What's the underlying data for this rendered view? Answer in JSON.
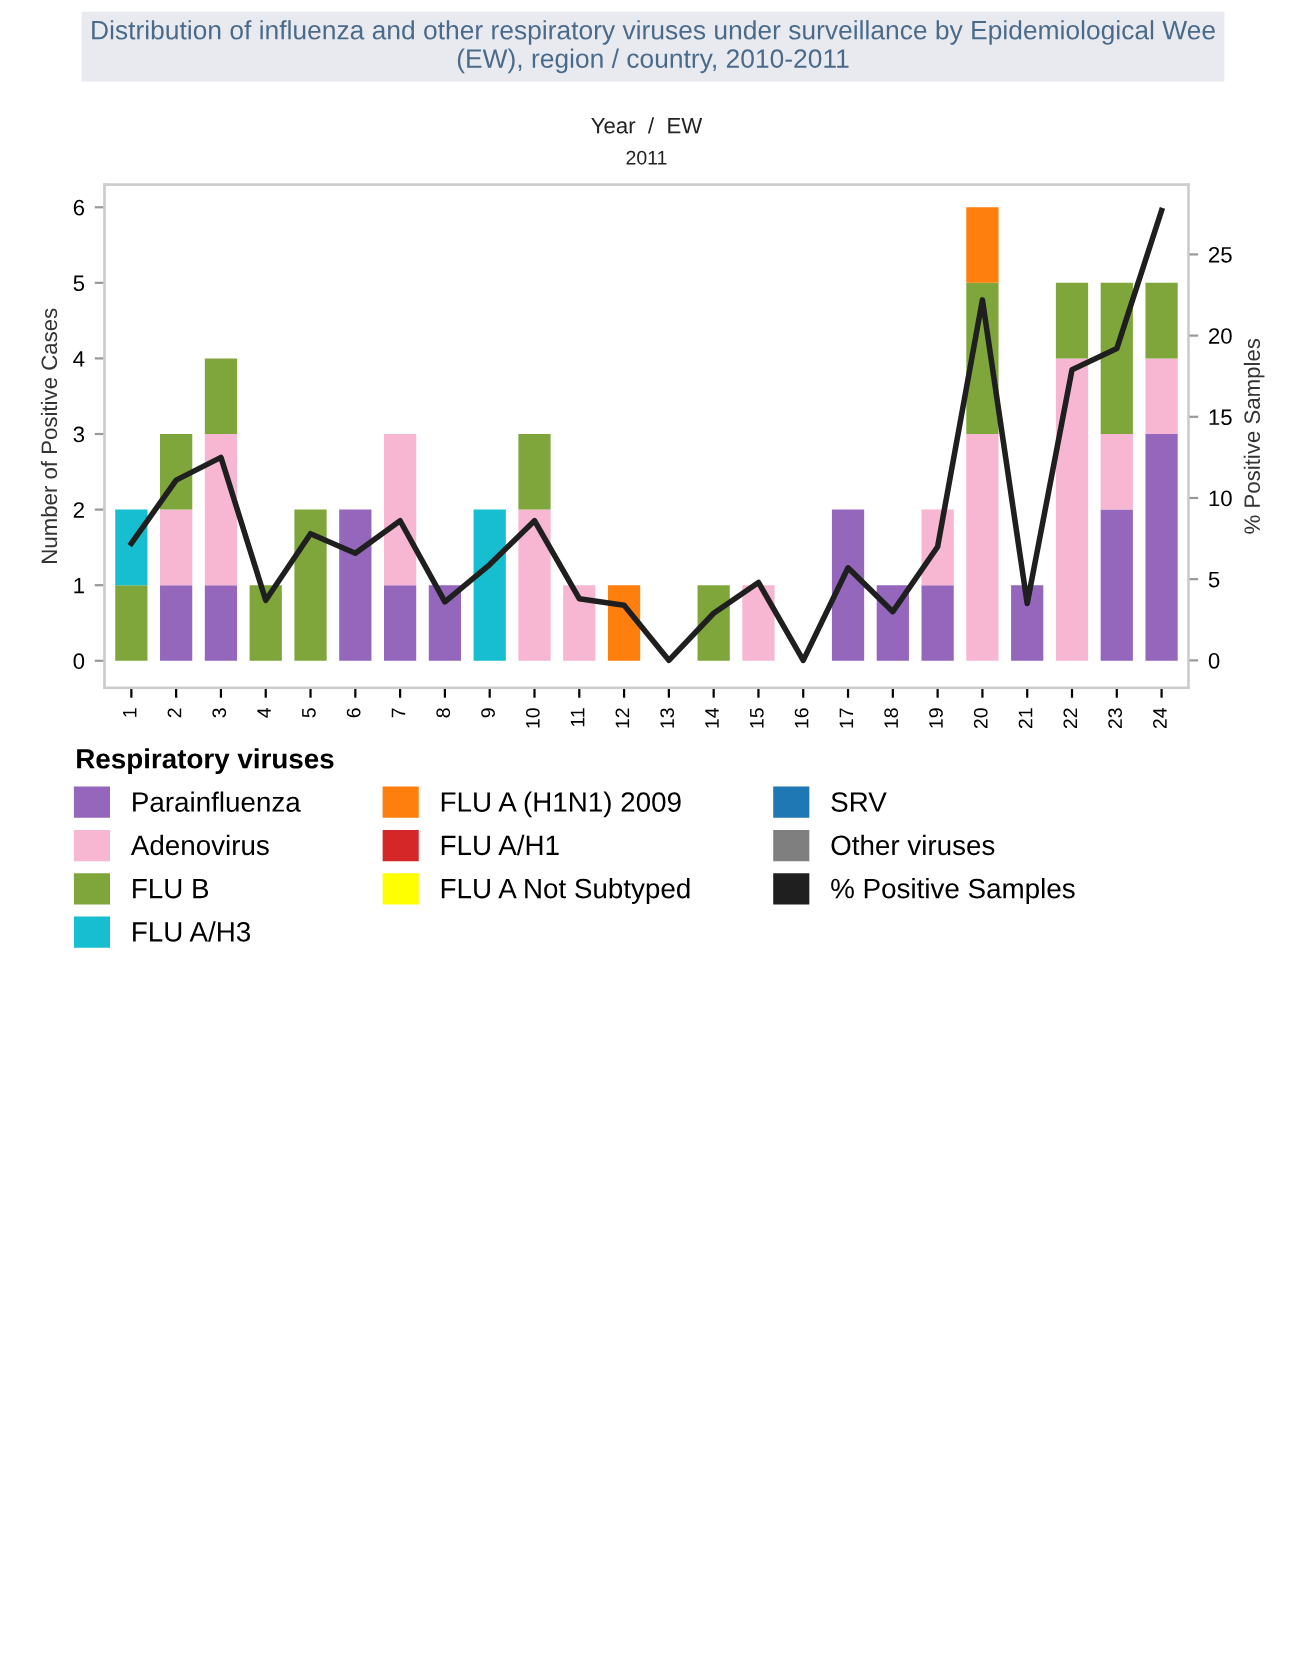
{
  "chart_data": {
    "type": "bar",
    "stacked": true,
    "title": "Distribution of influenza and other respiratory viruses under surveillance by Epidemiological Wee\n(EW), region / country, 2010-2011",
    "xlabel": "Year  /  EW",
    "annotations": [
      "2011"
    ],
    "ylabel": "Number of Positive Cases",
    "y2label": "% Positive Samples",
    "legend_title": "Respiratory viruses",
    "categories": [
      "1",
      "2",
      "3",
      "4",
      "5",
      "6",
      "7",
      "8",
      "9",
      "10",
      "11",
      "12",
      "13",
      "14",
      "15",
      "16",
      "17",
      "18",
      "19",
      "20",
      "21",
      "22",
      "23",
      "24"
    ],
    "series": [
      {
        "name": "Parainfluenza",
        "color": "#9467bd",
        "values": [
          0,
          1,
          1,
          0,
          0,
          2,
          1,
          1,
          0,
          0,
          0,
          0,
          0,
          0,
          0,
          0,
          2,
          1,
          1,
          0,
          1,
          0,
          2,
          3
        ]
      },
      {
        "name": "Adenovirus",
        "color": "#f7b6d2",
        "values": [
          0,
          1,
          2,
          0,
          0,
          0,
          2,
          0,
          0,
          2,
          1,
          0,
          0,
          0,
          1,
          0,
          0,
          0,
          1,
          3,
          0,
          4,
          1,
          1
        ]
      },
      {
        "name": "FLU B",
        "color": "#7ea63b",
        "values": [
          1,
          1,
          1,
          1,
          2,
          0,
          0,
          0,
          0,
          1,
          0,
          0,
          0,
          1,
          0,
          0,
          0,
          0,
          0,
          2,
          0,
          1,
          2,
          1
        ]
      },
      {
        "name": "FLU A/H3",
        "color": "#17becf",
        "values": [
          1,
          0,
          0,
          0,
          0,
          0,
          0,
          0,
          2,
          0,
          0,
          0,
          0,
          0,
          0,
          0,
          0,
          0,
          0,
          0,
          0,
          0,
          0,
          0
        ]
      },
      {
        "name": "FLU A (H1N1) 2009",
        "color": "#ff7f0e",
        "values": [
          0,
          0,
          0,
          0,
          0,
          0,
          0,
          0,
          0,
          0,
          0,
          1,
          0,
          0,
          0,
          0,
          0,
          0,
          0,
          1,
          0,
          0,
          0,
          0
        ]
      },
      {
        "name": "FLU A/H1",
        "color": "#d62728",
        "values": [
          0,
          0,
          0,
          0,
          0,
          0,
          0,
          0,
          0,
          0,
          0,
          0,
          0,
          0,
          0,
          0,
          0,
          0,
          0,
          0,
          0,
          0,
          0,
          0
        ]
      },
      {
        "name": "FLU A Not Subtyped",
        "color": "#ffff00",
        "values": [
          0,
          0,
          0,
          0,
          0,
          0,
          0,
          0,
          0,
          0,
          0,
          0,
          0,
          0,
          0,
          0,
          0,
          0,
          0,
          0,
          0,
          0,
          0,
          0
        ]
      },
      {
        "name": "SRV",
        "color": "#1f77b4",
        "values": [
          0,
          0,
          0,
          0,
          0,
          0,
          0,
          0,
          0,
          0,
          0,
          0,
          0,
          0,
          0,
          0,
          0,
          0,
          0,
          0,
          0,
          0,
          0,
          0
        ]
      },
      {
        "name": "Other viruses",
        "color": "#7f7f7f",
        "values": [
          0,
          0,
          0,
          0,
          0,
          0,
          0,
          0,
          0,
          0,
          0,
          0,
          0,
          0,
          0,
          0,
          0,
          0,
          0,
          0,
          0,
          0,
          0,
          0
        ]
      },
      {
        "name": "% Positive Samples",
        "color": "#1f1f1f",
        "type": "line",
        "axis": "y2",
        "values": [
          7.2,
          11.1,
          12.5,
          3.7,
          7.8,
          6.6,
          8.6,
          3.6,
          5.9,
          8.6,
          3.8,
          3.4,
          0,
          2.9,
          4.8,
          0,
          5.7,
          3.0,
          7.0,
          22.2,
          3.5,
          17.9,
          19.2,
          27.7
        ]
      }
    ],
    "ylim": [
      -0.36,
      6.3
    ],
    "yticks": [
      0,
      1,
      2,
      3,
      4,
      5,
      6
    ],
    "y2lim": [
      -1.7,
      29.3
    ],
    "y2ticks": [
      0,
      5,
      10,
      15,
      20,
      25
    ],
    "grid": false,
    "legend": "bottom",
    "marker": "none",
    "line_style": "solid"
  }
}
